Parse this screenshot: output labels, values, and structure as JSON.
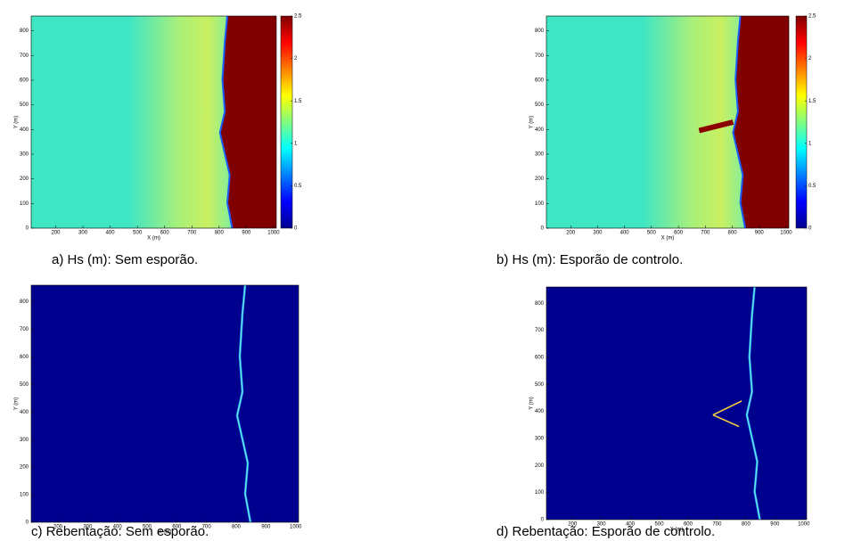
{
  "chart_data": [
    {
      "type": "heatmap",
      "caption": "a) Hs (m): Sem esporão.",
      "xlabel": "X (m)",
      "ylabel": "Y (m)",
      "xlim": [
        110,
        1010
      ],
      "ylim": [
        0,
        860
      ],
      "xticks": [
        200,
        300,
        400,
        500,
        600,
        700,
        800,
        900,
        1000
      ],
      "yticks": [
        0,
        100,
        200,
        300,
        400,
        500,
        600,
        700,
        800
      ],
      "colorbar": {
        "lim": [
          0,
          2.5
        ],
        "ticks": [
          0,
          0.5,
          1,
          1.5,
          2,
          2.5
        ]
      }
    },
    {
      "type": "heatmap",
      "caption": "b) Hs (m): Esporão de controlo.",
      "xlabel": "X (m)",
      "ylabel": "Y (m)",
      "xlim": [
        110,
        1010
      ],
      "ylim": [
        0,
        860
      ],
      "xticks": [
        200,
        300,
        400,
        500,
        600,
        700,
        800,
        900,
        1000
      ],
      "yticks": [
        0,
        100,
        200,
        300,
        400,
        500,
        600,
        700,
        800
      ],
      "colorbar": {
        "lim": [
          0,
          2.5
        ],
        "ticks": [
          0,
          0.5,
          1,
          1.5,
          2,
          2.5
        ]
      }
    },
    {
      "type": "heatmap",
      "caption": "c) Rebentação: Sem esporão.",
      "xlabel": "X (m)",
      "ylabel": "Y (m)",
      "xlim": [
        110,
        1010
      ],
      "ylim": [
        0,
        860
      ],
      "xticks": [
        200,
        300,
        400,
        500,
        600,
        700,
        800,
        900,
        1000
      ],
      "yticks": [
        0,
        100,
        200,
        300,
        400,
        500,
        600,
        700,
        800
      ]
    },
    {
      "type": "heatmap",
      "caption": "d) Rebentação: Esporão de controlo.",
      "xlabel": "X (m)",
      "ylabel": "Y (m)",
      "xlim": [
        110,
        1010
      ],
      "ylim": [
        0,
        860
      ],
      "xticks": [
        200,
        300,
        400,
        500,
        600,
        700,
        800,
        900,
        1000
      ],
      "yticks": [
        0,
        100,
        200,
        300,
        400,
        500,
        600,
        700,
        800
      ]
    }
  ]
}
